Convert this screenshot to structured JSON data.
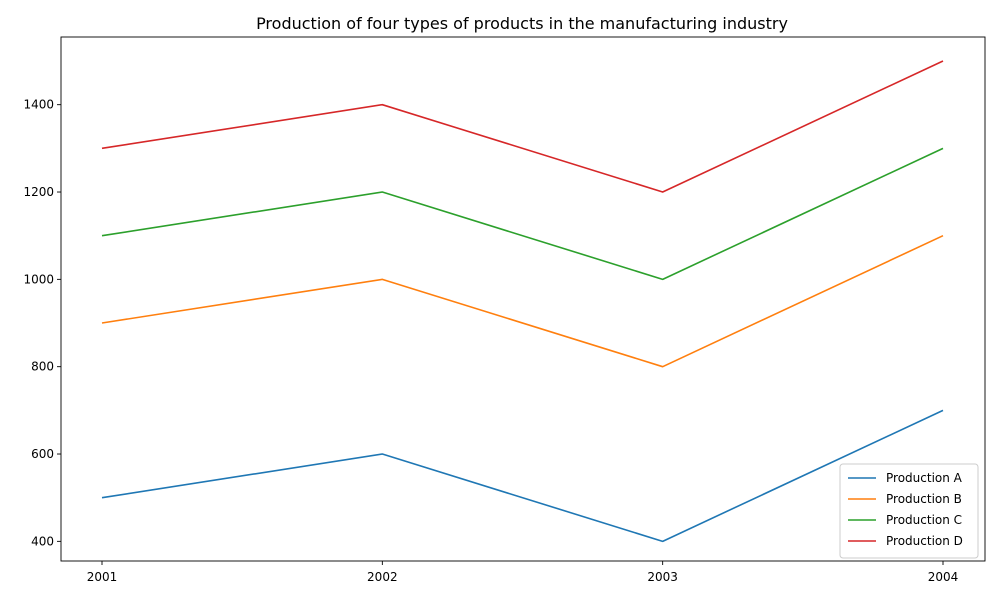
{
  "chart_data": {
    "type": "line",
    "title": "Production of four types of products in the manufacturing industry",
    "xlabel": "",
    "ylabel": "",
    "categories": [
      "2001",
      "2002",
      "2003",
      "2004"
    ],
    "series": [
      {
        "name": "Production A",
        "values": [
          500,
          600,
          400,
          700
        ],
        "color": "#1f77b4"
      },
      {
        "name": "Production B",
        "values": [
          900,
          1000,
          800,
          1100
        ],
        "color": "#ff7f0e"
      },
      {
        "name": "Production C",
        "values": [
          1100,
          1200,
          1000,
          1300
        ],
        "color": "#2ca02c"
      },
      {
        "name": "Production D",
        "values": [
          1300,
          1400,
          1200,
          1500
        ],
        "color": "#d62728"
      }
    ],
    "ylim": [
      355,
      1555
    ],
    "yticks": [
      400,
      600,
      800,
      1000,
      1200,
      1400
    ],
    "grid": false,
    "legend_position": "lower-right"
  }
}
